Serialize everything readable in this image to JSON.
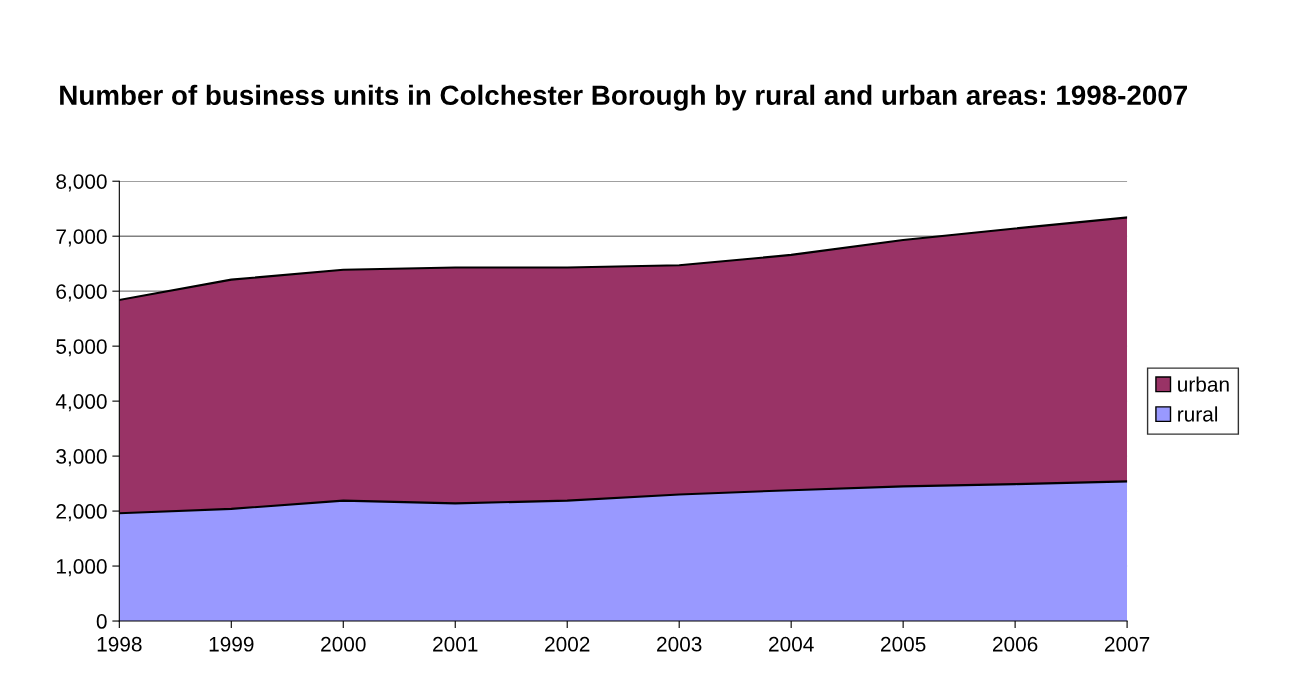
{
  "chart_data": {
    "type": "area",
    "stacked": true,
    "title": "Number of business units in Colchester Borough by rural and urban areas: 1998-2007",
    "categories": [
      "1998",
      "1999",
      "2000",
      "2001",
      "2002",
      "2003",
      "2004",
      "2005",
      "2006",
      "2007"
    ],
    "series": [
      {
        "name": "rural",
        "color": "#9999ff",
        "values": [
          1960,
          2040,
          2190,
          2140,
          2190,
          2300,
          2380,
          2450,
          2490,
          2540
        ]
      },
      {
        "name": "urban",
        "color": "#993366",
        "values": [
          3880,
          4170,
          4200,
          4290,
          4240,
          4170,
          4280,
          4480,
          4650,
          4800
        ]
      }
    ],
    "ylim": [
      0,
      8000
    ],
    "yticks": [
      {
        "value": 0,
        "label": "0"
      },
      {
        "value": 1000,
        "label": "1,000"
      },
      {
        "value": 2000,
        "label": "2,000"
      },
      {
        "value": 3000,
        "label": "3,000"
      },
      {
        "value": 4000,
        "label": "4,000"
      },
      {
        "value": 5000,
        "label": "5,000"
      },
      {
        "value": 6000,
        "label": "6,000"
      },
      {
        "value": 7000,
        "label": "7,000"
      },
      {
        "value": 8000,
        "label": "8,000"
      }
    ],
    "grid": "y",
    "legend": "right"
  }
}
